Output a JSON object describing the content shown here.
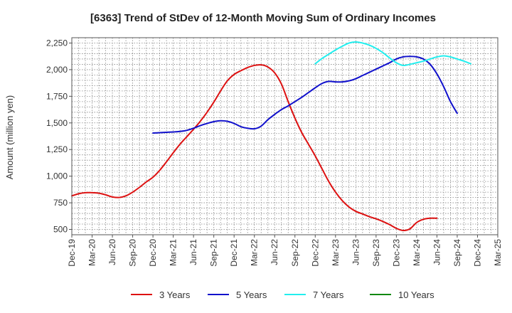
{
  "chart_data": {
    "type": "line",
    "title": "[6363]  Trend of StDev of 12-Month Moving Sum of Ordinary Incomes",
    "xlabel": "",
    "ylabel": "Amount (million yen)",
    "ylim": [
      450,
      2300
    ],
    "yticks": [
      500,
      750,
      1000,
      1250,
      1500,
      1750,
      2000,
      2250
    ],
    "ytick_labels": [
      "500",
      "750",
      "1,000",
      "1,250",
      "1,500",
      "1,750",
      "2,000",
      "2,250"
    ],
    "xlim": [
      0,
      63
    ],
    "xticks": [
      0,
      3,
      6,
      9,
      12,
      15,
      18,
      21,
      24,
      27,
      30,
      33,
      36,
      39,
      42,
      45,
      48,
      51,
      54,
      57,
      60,
      63
    ],
    "xtick_labels": [
      "Dec-19",
      "Mar-20",
      "Jun-20",
      "Sep-20",
      "Dec-20",
      "Mar-21",
      "Jun-21",
      "Sep-21",
      "Dec-21",
      "Mar-22",
      "Jun-22",
      "Sep-22",
      "Dec-22",
      "Mar-23",
      "Jun-23",
      "Sep-23",
      "Dec-23",
      "Mar-24",
      "Jun-24",
      "Sep-24",
      "Dec-24",
      "Mar-25"
    ],
    "grid": true,
    "legend_position": "bottom",
    "series": [
      {
        "name": "3 Years",
        "color": "#dd1111",
        "points": [
          [
            0,
            815
          ],
          [
            1,
            835
          ],
          [
            2,
            845
          ],
          [
            3,
            845
          ],
          [
            4,
            840
          ],
          [
            5,
            825
          ],
          [
            6,
            805
          ],
          [
            7,
            800
          ],
          [
            8,
            815
          ],
          [
            9,
            850
          ],
          [
            10,
            895
          ],
          [
            11,
            945
          ],
          [
            12,
            990
          ],
          [
            13,
            1055
          ],
          [
            14,
            1135
          ],
          [
            15,
            1220
          ],
          [
            16,
            1300
          ],
          [
            17,
            1370
          ],
          [
            18,
            1440
          ],
          [
            19,
            1515
          ],
          [
            20,
            1600
          ],
          [
            21,
            1695
          ],
          [
            22,
            1800
          ],
          [
            23,
            1895
          ],
          [
            24,
            1955
          ],
          [
            25,
            1990
          ],
          [
            26,
            2020
          ],
          [
            27,
            2040
          ],
          [
            28,
            2045
          ],
          [
            29,
            2025
          ],
          [
            30,
            1970
          ],
          [
            31,
            1865
          ],
          [
            32,
            1700
          ],
          [
            33,
            1545
          ],
          [
            34,
            1410
          ],
          [
            35,
            1300
          ],
          [
            36,
            1190
          ],
          [
            37,
            1070
          ],
          [
            38,
            950
          ],
          [
            39,
            850
          ],
          [
            40,
            770
          ],
          [
            41,
            710
          ],
          [
            42,
            670
          ],
          [
            43,
            645
          ],
          [
            44,
            620
          ],
          [
            45,
            600
          ],
          [
            46,
            575
          ],
          [
            47,
            545
          ],
          [
            48,
            510
          ],
          [
            49,
            490
          ],
          [
            50,
            505
          ],
          [
            51,
            565
          ],
          [
            52,
            595
          ],
          [
            53,
            605
          ],
          [
            54,
            605
          ]
        ]
      },
      {
        "name": "5 Years",
        "color": "#1111cc",
        "points": [
          [
            12,
            1405
          ],
          [
            13,
            1408
          ],
          [
            14,
            1412
          ],
          [
            15,
            1415
          ],
          [
            16,
            1420
          ],
          [
            17,
            1430
          ],
          [
            18,
            1450
          ],
          [
            19,
            1475
          ],
          [
            20,
            1495
          ],
          [
            21,
            1512
          ],
          [
            22,
            1520
          ],
          [
            23,
            1515
          ],
          [
            24,
            1495
          ],
          [
            25,
            1465
          ],
          [
            26,
            1450
          ],
          [
            27,
            1445
          ],
          [
            28,
            1470
          ],
          [
            29,
            1530
          ],
          [
            30,
            1580
          ],
          [
            31,
            1625
          ],
          [
            32,
            1660
          ],
          [
            33,
            1700
          ],
          [
            34,
            1740
          ],
          [
            35,
            1785
          ],
          [
            36,
            1830
          ],
          [
            37,
            1870
          ],
          [
            38,
            1890
          ],
          [
            39,
            1885
          ],
          [
            40,
            1885
          ],
          [
            41,
            1895
          ],
          [
            42,
            1915
          ],
          [
            43,
            1945
          ],
          [
            44,
            1975
          ],
          [
            45,
            2005
          ],
          [
            46,
            2035
          ],
          [
            47,
            2065
          ],
          [
            48,
            2100
          ],
          [
            49,
            2120
          ],
          [
            50,
            2125
          ],
          [
            51,
            2120
          ],
          [
            52,
            2100
          ],
          [
            53,
            2050
          ],
          [
            54,
            1960
          ],
          [
            55,
            1840
          ],
          [
            56,
            1700
          ],
          [
            57,
            1590
          ]
        ]
      },
      {
        "name": "7 Years",
        "color": "#22eeee",
        "points": [
          [
            36,
            2055
          ],
          [
            37,
            2105
          ],
          [
            38,
            2145
          ],
          [
            39,
            2185
          ],
          [
            40,
            2220
          ],
          [
            41,
            2250
          ],
          [
            42,
            2260
          ],
          [
            43,
            2250
          ],
          [
            44,
            2230
          ],
          [
            45,
            2200
          ],
          [
            46,
            2160
          ],
          [
            47,
            2110
          ],
          [
            48,
            2065
          ],
          [
            49,
            2040
          ],
          [
            50,
            2050
          ],
          [
            51,
            2065
          ],
          [
            52,
            2080
          ],
          [
            53,
            2100
          ],
          [
            54,
            2120
          ],
          [
            55,
            2130
          ],
          [
            56,
            2120
          ],
          [
            57,
            2100
          ],
          [
            58,
            2080
          ],
          [
            59,
            2055
          ]
        ]
      },
      {
        "name": "10 Years",
        "color": "#118811",
        "points": []
      }
    ]
  }
}
